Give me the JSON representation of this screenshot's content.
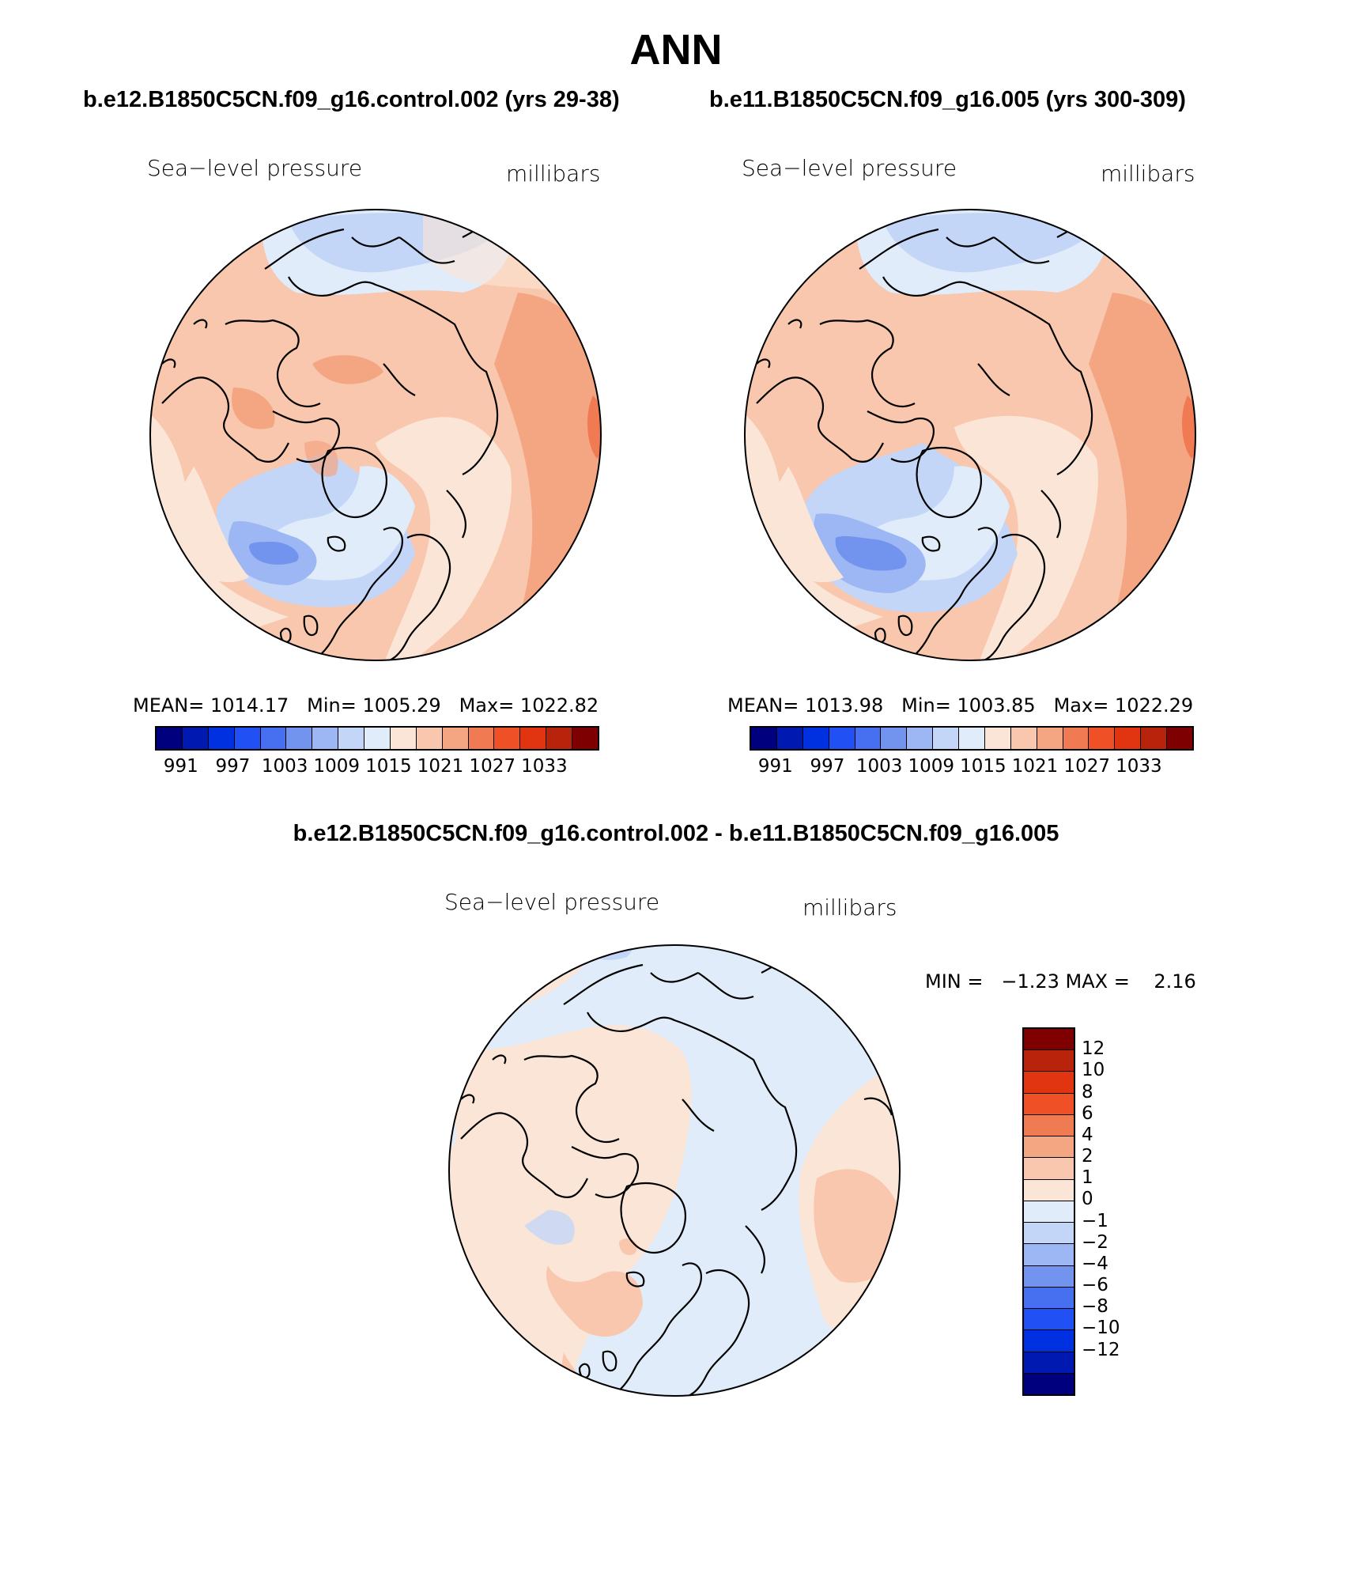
{
  "title": "ANN",
  "panel_left": {
    "case": "b.e12.B1850C5CN.f09_g16.control.002 (yrs 29-38)",
    "variable": "Sea−level pressure",
    "units": "millibars",
    "stats": "MEAN= 1014.17   Min= 1005.29   Max= 1022.82",
    "mean": 1014.17,
    "min": 1005.29,
    "max": 1022.82
  },
  "panel_right": {
    "case": "b.e11.B1850C5CN.f09_g16.005 (yrs 300-309)",
    "variable": "Sea−level pressure",
    "units": "millibars",
    "stats": "MEAN= 1013.98   Min= 1003.85   Max= 1022.29",
    "mean": 1013.98,
    "min": 1003.85,
    "max": 1022.29
  },
  "panel_diff": {
    "case": "b.e12.B1850C5CN.f09_g16.control.002 - b.e11.B1850C5CN.f09_g16.005",
    "variable": "Sea−level pressure",
    "units": "millibars",
    "stats": "MIN =   −1.23 MAX =    2.16",
    "min": -1.23,
    "max": 2.16
  },
  "colorbar_abs": {
    "colors": [
      "#00007f",
      "#0019b0",
      "#0031e0",
      "#2150f5",
      "#4770f0",
      "#7294ee",
      "#9db6f4",
      "#c4d6f7",
      "#e0ecfa",
      "#fbe5d6",
      "#f8c7ad",
      "#f4a582",
      "#f07a51",
      "#f05026",
      "#e03510",
      "#b8230b",
      "#7f0000"
    ],
    "labels": [
      "991",
      "997",
      "1003",
      "1009",
      "1015",
      "1021",
      "1027",
      "1033"
    ]
  },
  "colorbar_diff": {
    "colors": [
      "#7f0000",
      "#b8230b",
      "#e03510",
      "#f05026",
      "#f07a51",
      "#f4a582",
      "#f8c7ad",
      "#fbe5d6",
      "#e0ecfa",
      "#c4d6f7",
      "#9db6f4",
      "#7294ee",
      "#4770f0",
      "#2150f5",
      "#0031e0",
      "#0019b0",
      "#00007f"
    ],
    "labels": [
      "12",
      "10",
      "8",
      "6",
      "4",
      "2",
      "1",
      "0",
      "−1",
      "−2",
      "−4",
      "−6",
      "−8",
      "−10",
      "−12"
    ]
  },
  "palette": {
    "neg1": "#e0ecfa",
    "neg2": "#c4d6f7",
    "neg3": "#9db6f4",
    "neg4": "#7294ee",
    "pos0": "#fbe5d6",
    "pos1": "#f8c7ad",
    "pos2": "#f4a582",
    "pos3": "#f07a51"
  }
}
